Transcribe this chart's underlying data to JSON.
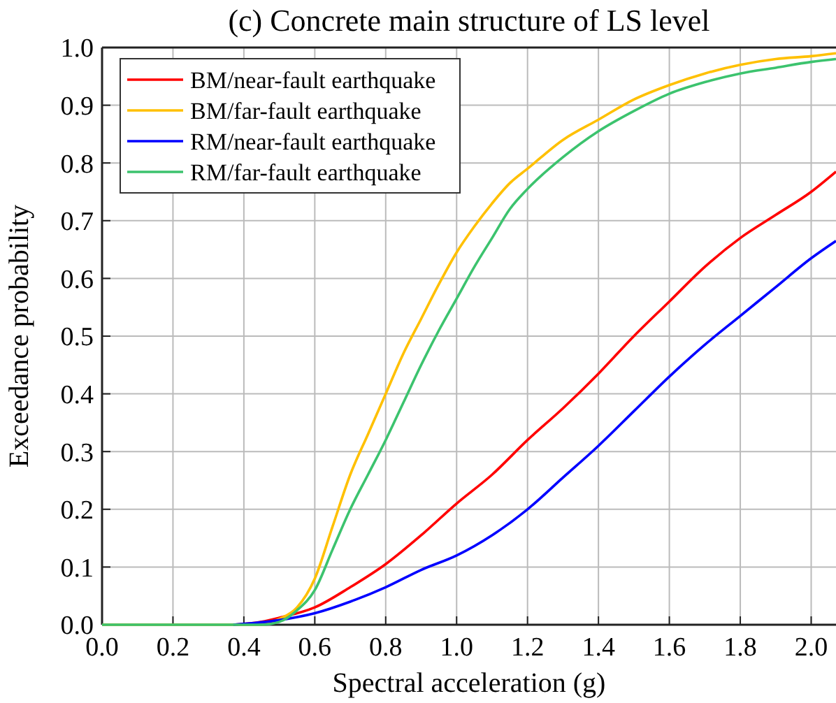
{
  "chart_data": {
    "type": "line",
    "title": "(c) Concrete main structure of LS level",
    "xlabel": "Spectral acceleration (g)",
    "ylabel": "Exceedance probability",
    "xlim": [
      0,
      2.07
    ],
    "ylim": [
      0,
      1.0
    ],
    "xticks": [
      {
        "value": 0,
        "label": "0.0"
      },
      {
        "value": 0.2,
        "label": "0.2"
      },
      {
        "value": 0.4,
        "label": "0.4"
      },
      {
        "value": 0.6,
        "label": "0.6"
      },
      {
        "value": 0.8,
        "label": "0.8"
      },
      {
        "value": 1.0,
        "label": "1.0"
      },
      {
        "value": 1.2,
        "label": "1.2"
      },
      {
        "value": 1.4,
        "label": "1.4"
      },
      {
        "value": 1.6,
        "label": "1.6"
      },
      {
        "value": 1.8,
        "label": "1.8"
      },
      {
        "value": 2.0,
        "label": "2.0"
      }
    ],
    "yticks": [
      {
        "value": 0,
        "label": "0.0"
      },
      {
        "value": 0.1,
        "label": "0.1"
      },
      {
        "value": 0.2,
        "label": "0.2"
      },
      {
        "value": 0.3,
        "label": "0.3"
      },
      {
        "value": 0.4,
        "label": "0.4"
      },
      {
        "value": 0.5,
        "label": "0.5"
      },
      {
        "value": 0.6,
        "label": "0.6"
      },
      {
        "value": 0.7,
        "label": "0.7"
      },
      {
        "value": 0.8,
        "label": "0.8"
      },
      {
        "value": 0.9,
        "label": "0.9"
      },
      {
        "value": 1.0,
        "label": "1.0"
      }
    ],
    "grid": true,
    "legend": "top left",
    "marker": "none",
    "line_style": "solid",
    "series": [
      {
        "name": "BM/near-fault earthquake",
        "color": "#ff0000",
        "x": [
          0.37,
          0.45,
          0.5,
          0.6,
          0.7,
          0.8,
          0.9,
          1.0,
          1.1,
          1.2,
          1.3,
          1.4,
          1.5,
          1.6,
          1.7,
          1.8,
          1.9,
          2.0,
          2.07
        ],
        "values": [
          0,
          0.005,
          0.012,
          0.03,
          0.065,
          0.105,
          0.155,
          0.21,
          0.26,
          0.32,
          0.375,
          0.435,
          0.5,
          0.56,
          0.62,
          0.67,
          0.71,
          0.75,
          0.785
        ]
      },
      {
        "name": "BM/far-fault earthquake",
        "color": "#ffc000",
        "x": [
          0,
          0.45,
          0.5,
          0.55,
          0.6,
          0.65,
          0.7,
          0.75,
          0.8,
          0.85,
          0.9,
          0.95,
          1.0,
          1.05,
          1.1,
          1.15,
          1.2,
          1.3,
          1.4,
          1.5,
          1.6,
          1.7,
          1.8,
          1.9,
          2.0,
          2.07
        ],
        "values": [
          0,
          0,
          0.01,
          0.03,
          0.08,
          0.17,
          0.26,
          0.33,
          0.4,
          0.47,
          0.53,
          0.59,
          0.645,
          0.69,
          0.73,
          0.765,
          0.79,
          0.84,
          0.875,
          0.91,
          0.935,
          0.955,
          0.97,
          0.98,
          0.985,
          0.99
        ]
      },
      {
        "name": "RM/near-fault earthquake",
        "color": "#0000ff",
        "x": [
          0.37,
          0.5,
          0.6,
          0.7,
          0.8,
          0.9,
          1.0,
          1.1,
          1.2,
          1.3,
          1.4,
          1.5,
          1.6,
          1.7,
          1.8,
          1.9,
          2.0,
          2.07
        ],
        "values": [
          0,
          0.008,
          0.02,
          0.04,
          0.065,
          0.095,
          0.12,
          0.155,
          0.2,
          0.255,
          0.31,
          0.37,
          0.43,
          0.485,
          0.535,
          0.585,
          0.635,
          0.665
        ]
      },
      {
        "name": "RM/far-fault earthquake",
        "color": "#3cc36e",
        "x": [
          0,
          0.45,
          0.5,
          0.55,
          0.6,
          0.65,
          0.7,
          0.75,
          0.8,
          0.85,
          0.9,
          0.95,
          1.0,
          1.05,
          1.1,
          1.15,
          1.2,
          1.3,
          1.4,
          1.5,
          1.6,
          1.7,
          1.8,
          1.9,
          2.0,
          2.07
        ],
        "values": [
          0,
          0,
          0.005,
          0.025,
          0.06,
          0.13,
          0.2,
          0.26,
          0.32,
          0.385,
          0.45,
          0.51,
          0.565,
          0.62,
          0.67,
          0.72,
          0.755,
          0.81,
          0.855,
          0.89,
          0.92,
          0.94,
          0.955,
          0.965,
          0.975,
          0.98
        ]
      }
    ]
  }
}
